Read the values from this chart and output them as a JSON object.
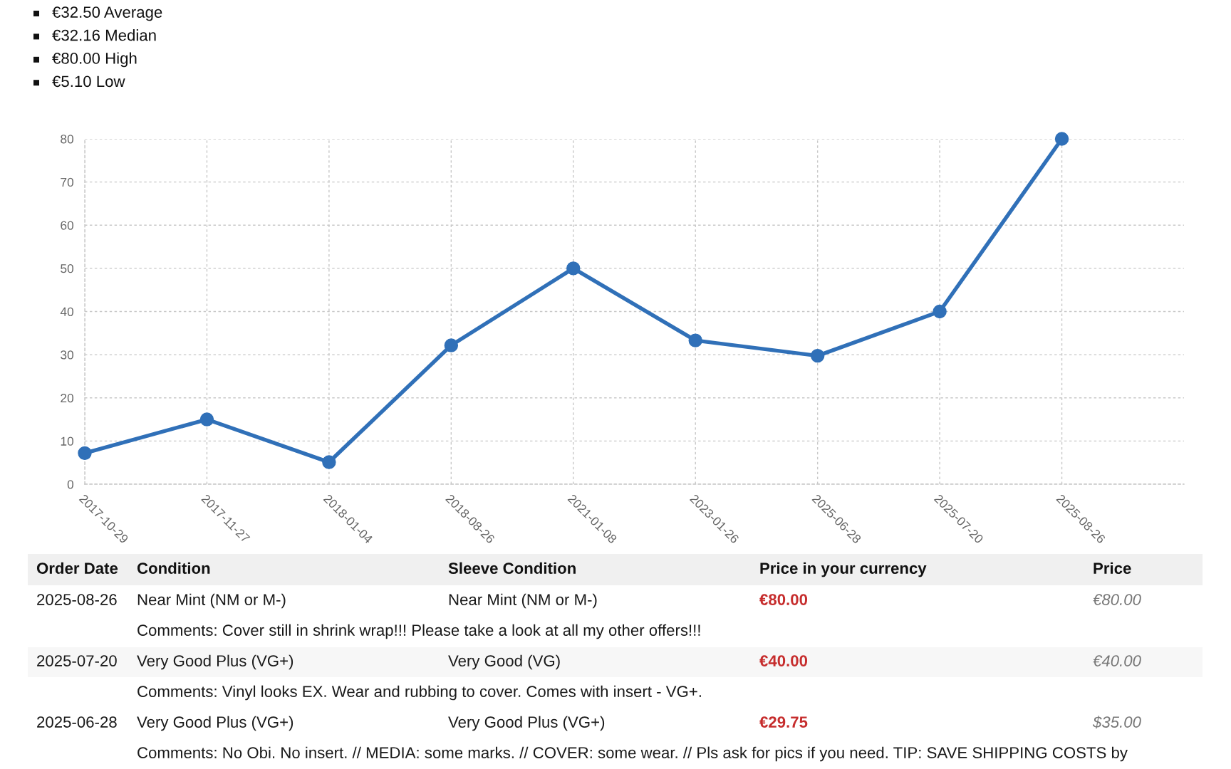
{
  "chart_data": {
    "type": "line",
    "categories": [
      "2017-10-29",
      "2017-11-27",
      "2018-01-04",
      "2018-08-26",
      "2021-01-08",
      "2023-01-26",
      "2025-06-28",
      "2025-07-20",
      "2025-08-26"
    ],
    "values": [
      7.2,
      15,
      5.1,
      32.16,
      50,
      33.3,
      29.75,
      40,
      80
    ],
    "color": "#3070b8",
    "marker": "circle",
    "line_style": "solid",
    "ylim": [
      0,
      80
    ],
    "yticks": [
      0,
      10,
      20,
      30,
      40,
      50,
      60,
      70,
      80
    ],
    "grid": true,
    "annotations": [
      "€32.50 Average",
      "€32.16 Median",
      "€80.00 High",
      "€5.10 Low",
      "Order Date",
      "Condition",
      "Sleeve Condition",
      "Price in your currency",
      "Price",
      "2025-08-26",
      "Near Mint (NM or M-)",
      "Near Mint (NM or M-)",
      "€80.00",
      "€80.00",
      "Comments: Cover still in shrink wrap!!! Please take a look at all my other offers!!!",
      "2025-07-20",
      "Very Good Plus (VG+)",
      "Very Good (VG)",
      "€40.00",
      "€40.00",
      "Comments: Vinyl looks EX. Wear and rubbing to cover. Comes with insert - VG+.",
      "2025-06-28",
      "Very Good Plus (VG+)",
      "Very Good Plus (VG+)",
      "€29.75",
      "$35.00",
      "Comments: No Obi. No insert. // MEDIA: some marks. // COVER: some wear. // Pls ask for pics if you need. TIP: SAVE SHIPPING COSTS by"
    ]
  }
}
